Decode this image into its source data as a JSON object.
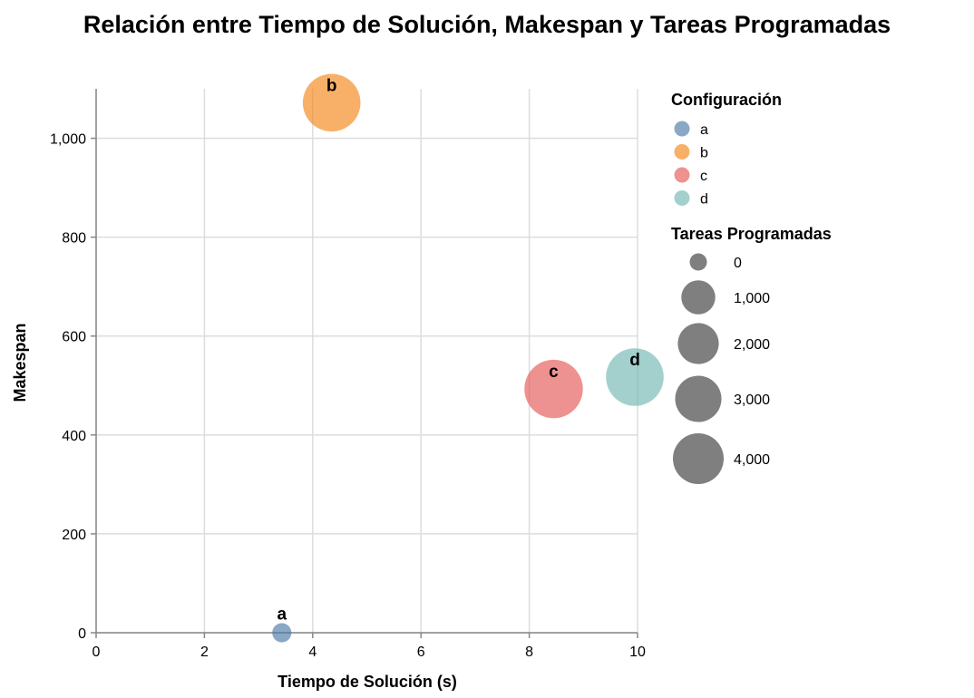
{
  "chart_data": {
    "type": "scatter",
    "title": "Relación entre Tiempo de Solución, Makespan y Tareas Programadas",
    "xlabel": "Tiempo de Solución (s)",
    "ylabel": "Makespan",
    "xlim": [
      0,
      10
    ],
    "ylim": [
      0,
      1100
    ],
    "xticks": [
      0,
      2,
      4,
      6,
      8,
      10
    ],
    "xtick_labels": [
      "0",
      "2",
      "4",
      "6",
      "8",
      "10"
    ],
    "yticks": [
      0,
      200,
      400,
      600,
      800,
      1000
    ],
    "ytick_labels": [
      "0",
      "200",
      "400",
      "600",
      "800",
      "1,000"
    ],
    "grid": true,
    "points": [
      {
        "label": "a",
        "x": 3.43,
        "y": 0,
        "size": 400,
        "color": "#4c78a8"
      },
      {
        "label": "b",
        "x": 4.35,
        "y": 1072,
        "size": 3600,
        "color": "#f58518"
      },
      {
        "label": "c",
        "x": 8.45,
        "y": 493,
        "size": 3700,
        "color": "#e45756"
      },
      {
        "label": "d",
        "x": 9.95,
        "y": 517,
        "size": 3600,
        "color": "#72b7b2"
      }
    ],
    "legend_color": {
      "title": "Configuración",
      "placement": "right",
      "entries": [
        {
          "label": "a",
          "color": "#4c78a8"
        },
        {
          "label": "b",
          "color": "#f58518"
        },
        {
          "label": "c",
          "color": "#e45756"
        },
        {
          "label": "d",
          "color": "#72b7b2"
        }
      ]
    },
    "legend_size": {
      "title": "Tareas Programadas",
      "placement": "right",
      "entries": [
        {
          "label": "0",
          "value": 0
        },
        {
          "label": "1,000",
          "value": 1000
        },
        {
          "label": "2,000",
          "value": 2000
        },
        {
          "label": "3,000",
          "value": 3000
        },
        {
          "label": "4,000",
          "value": 4000
        }
      ]
    }
  }
}
